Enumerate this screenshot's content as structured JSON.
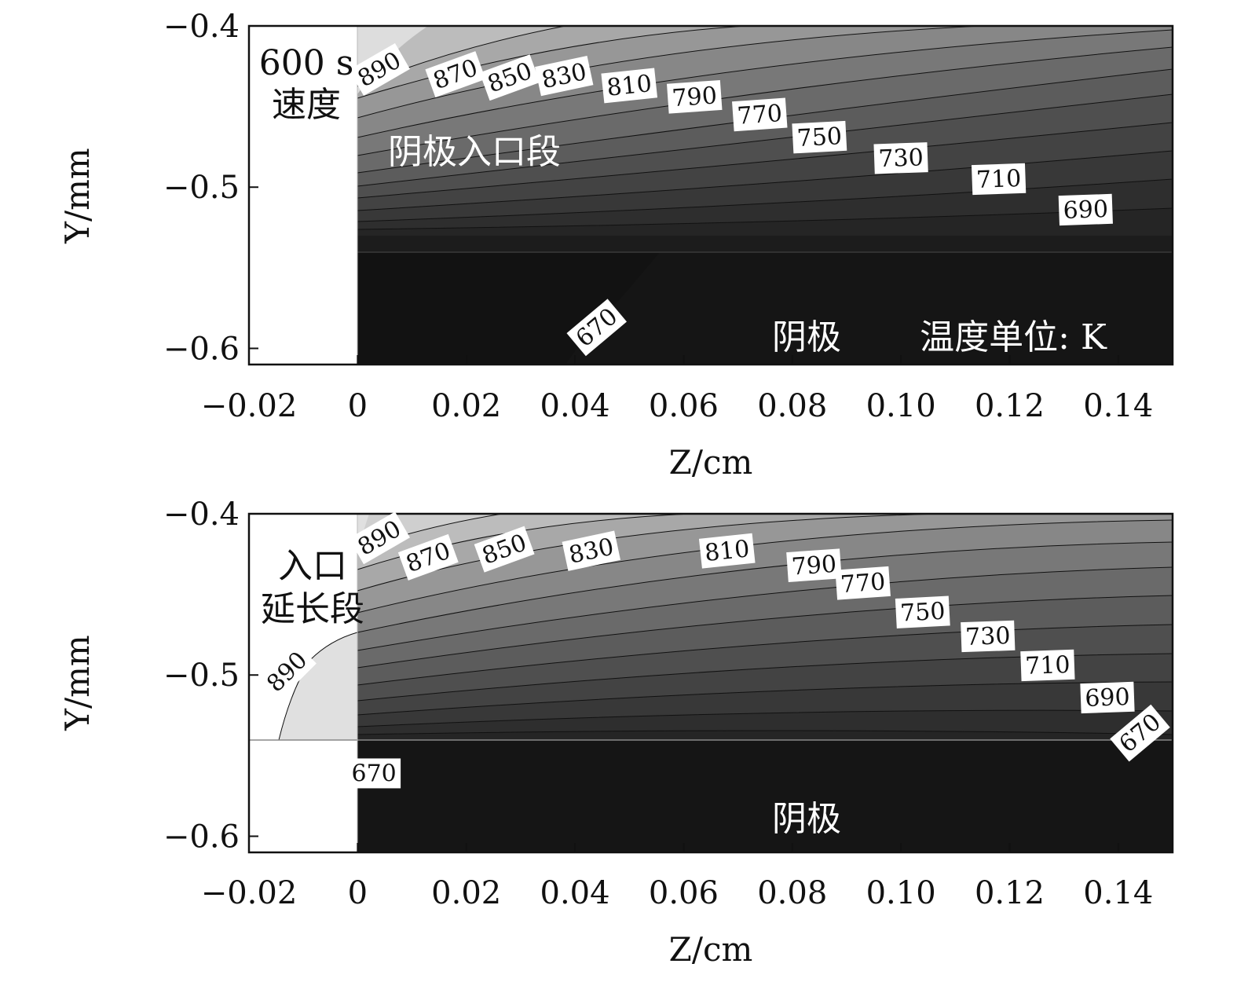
{
  "chart_data": [
    {
      "type": "heatmap",
      "subtype": "filled-contour",
      "panel": "top",
      "annotations": {
        "time": "600 s",
        "mode": "速度",
        "inlet": "阴极入口段",
        "cathode": "阴极",
        "unit": "温度单位: K"
      },
      "xlabel": "Z/cm",
      "ylabel": "Y/mm",
      "xlim": [
        -0.02,
        0.15
      ],
      "ylim": [
        -0.61,
        -0.4
      ],
      "y_inverted": true,
      "xticks": [
        -0.02,
        0,
        0.02,
        0.04,
        0.06,
        0.08,
        0.1,
        0.12,
        0.14
      ],
      "xtick_labels": [
        "−0.02",
        "0",
        "0.02",
        "0.04",
        "0.06",
        "0.08",
        "0.10",
        "0.12",
        "0.14"
      ],
      "yticks": [
        -0.4,
        -0.5,
        -0.6
      ],
      "ytick_labels": [
        "−0.4",
        "−0.5",
        "−0.6"
      ],
      "colormap": "grayscale (light = hot, dark = cold)",
      "cathode_boundary_y": -0.541,
      "contour_labels": [
        {
          "text": "890",
          "z": 0.004,
          "y": -0.427
        },
        {
          "text": "870",
          "z": 0.018,
          "y": -0.43
        },
        {
          "text": "850",
          "z": 0.028,
          "y": -0.432
        },
        {
          "text": "830",
          "z": 0.038,
          "y": -0.431
        },
        {
          "text": "810",
          "z": 0.05,
          "y": -0.437
        },
        {
          "text": "790",
          "z": 0.062,
          "y": -0.444
        },
        {
          "text": "770",
          "z": 0.074,
          "y": -0.455
        },
        {
          "text": "750",
          "z": 0.085,
          "y": -0.469
        },
        {
          "text": "730",
          "z": 0.1,
          "y": -0.482
        },
        {
          "text": "710",
          "z": 0.118,
          "y": -0.495
        },
        {
          "text": "690",
          "z": 0.134,
          "y": -0.514
        },
        {
          "text": "670",
          "z": 0.044,
          "y": -0.587
        }
      ]
    },
    {
      "type": "heatmap",
      "subtype": "filled-contour",
      "panel": "bottom",
      "annotations": {
        "inlet_ext": "入口",
        "inlet_ext2": "延长段",
        "cathode": "阴极"
      },
      "xlabel": "Z/cm",
      "ylabel": "Y/mm",
      "xlim": [
        -0.02,
        0.15
      ],
      "ylim": [
        -0.61,
        -0.4
      ],
      "y_inverted": true,
      "xticks": [
        -0.02,
        0,
        0.02,
        0.04,
        0.06,
        0.08,
        0.1,
        0.12,
        0.14
      ],
      "xtick_labels": [
        "−0.02",
        "0",
        "0.02",
        "0.04",
        "0.06",
        "0.08",
        "0.10",
        "0.12",
        "0.14"
      ],
      "yticks": [
        -0.4,
        -0.5,
        -0.6
      ],
      "ytick_labels": [
        "−0.4",
        "−0.5",
        "−0.6"
      ],
      "colormap": "grayscale (light = hot, dark = cold)",
      "cathode_boundary_y": -0.541,
      "contour_labels": [
        {
          "text": "890",
          "z": 0.004,
          "y": -0.415
        },
        {
          "text": "870",
          "z": 0.013,
          "y": -0.427
        },
        {
          "text": "850",
          "z": 0.027,
          "y": -0.422
        },
        {
          "text": "830",
          "z": 0.043,
          "y": -0.423
        },
        {
          "text": "810",
          "z": 0.068,
          "y": -0.423
        },
        {
          "text": "790",
          "z": 0.084,
          "y": -0.432
        },
        {
          "text": "770",
          "z": 0.093,
          "y": -0.443
        },
        {
          "text": "750",
          "z": 0.104,
          "y": -0.461
        },
        {
          "text": "730",
          "z": 0.116,
          "y": -0.476
        },
        {
          "text": "710",
          "z": 0.127,
          "y": -0.494
        },
        {
          "text": "690",
          "z": 0.138,
          "y": -0.514
        },
        {
          "text": "670",
          "z": 0.144,
          "y": -0.536
        },
        {
          "text": "890",
          "z": -0.013,
          "y": -0.498
        },
        {
          "text": "670",
          "z": 0.003,
          "y": -0.561
        }
      ]
    }
  ]
}
